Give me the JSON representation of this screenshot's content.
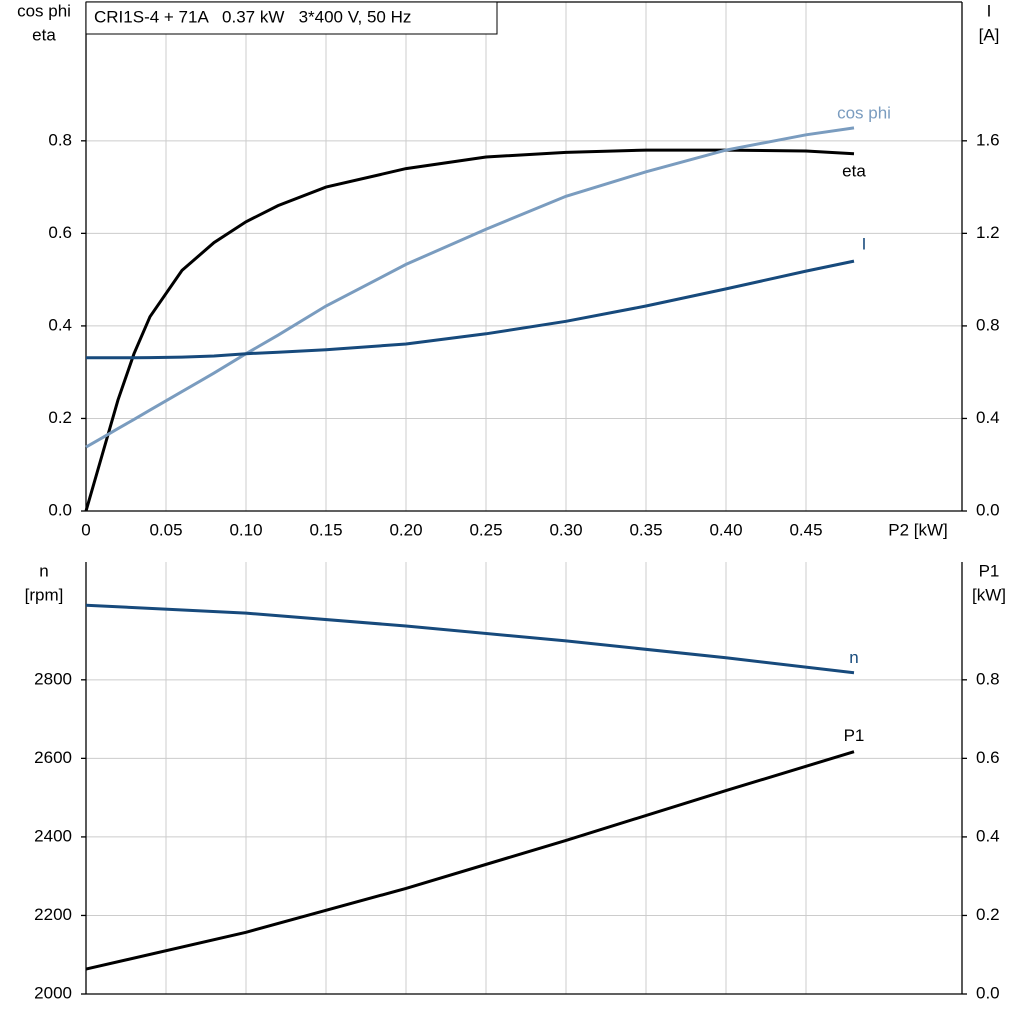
{
  "chart_data": [
    {
      "type": "line",
      "title": "CRI1S-4 + 71A   0.37 kW   3*400 V, 50 Hz",
      "ylabel": [
        "cos phi",
        "eta"
      ],
      "y2label": [
        "I",
        "[A]"
      ],
      "xlabel": "P2 [kW]",
      "x": [
        0,
        0.01,
        0.02,
        0.03,
        0.04,
        0.06,
        0.08,
        0.1,
        0.12,
        0.15,
        0.2,
        0.25,
        0.3,
        0.35,
        0.4,
        0.45,
        0.48
      ],
      "series": [
        {
          "name": "eta",
          "color": "#000000",
          "values": [
            0,
            0.12,
            0.24,
            0.34,
            0.42,
            0.52,
            0.58,
            0.625,
            0.66,
            0.7,
            0.74,
            0.765,
            0.775,
            0.78,
            0.78,
            0.778,
            0.772
          ]
        },
        {
          "name": "cos phi",
          "color": "#7a9cbf",
          "values": [
            0.138,
            0.158,
            0.178,
            0.198,
            0.218,
            0.258,
            0.298,
            0.34,
            0.38,
            0.443,
            0.533,
            0.609,
            0.68,
            0.733,
            0.78,
            0.813,
            0.828
          ]
        },
        {
          "name": "I",
          "color": "#174a7c",
          "axis": "y2",
          "values": [
            0.662,
            0.662,
            0.662,
            0.662,
            0.663,
            0.665,
            0.67,
            0.68,
            0.686,
            0.697,
            0.722,
            0.766,
            0.82,
            0.886,
            0.96,
            1.037,
            1.08
          ]
        }
      ],
      "xlim": [
        0,
        0.5475
      ],
      "xticks": [
        0,
        0.05,
        {
          "value": 0.1,
          "label": "0.10"
        },
        0.15,
        {
          "value": 0.2,
          "label": "0.20"
        },
        0.25,
        {
          "value": 0.3,
          "label": "0.30"
        },
        0.35,
        {
          "value": 0.4,
          "label": "0.40"
        },
        0.45
      ],
      "ylim": [
        0,
        1.1
      ],
      "yticks": [
        {
          "value": 0,
          "label": "0.0"
        },
        0.2,
        0.4,
        0.6,
        0.8
      ],
      "y2lim": [
        0,
        2.2
      ],
      "y2ticks": [
        {
          "value": 0,
          "label": "0.0"
        },
        0.4,
        0.8,
        1.2,
        1.6
      ],
      "grid": true
    },
    {
      "type": "line",
      "ylabel": [
        "n",
        "[rpm]"
      ],
      "y2label": [
        "P1",
        "[kW]"
      ],
      "x": [
        0,
        0.1,
        0.2,
        0.3,
        0.4,
        0.48
      ],
      "series": [
        {
          "name": "n",
          "color": "#174a7c",
          "values": [
            2990,
            2970,
            2937,
            2899,
            2856,
            2818
          ]
        },
        {
          "name": "P1",
          "color": "#000000",
          "axis": "y2",
          "values": [
            0.0635,
            0.157,
            0.269,
            0.391,
            0.518,
            0.617
          ]
        }
      ],
      "xlim": [
        0,
        0.5475
      ],
      "xticks": [
        0,
        0.05,
        0.1,
        0.15,
        0.2,
        0.25,
        0.3,
        0.35,
        0.4,
        0.45
      ],
      "ylim": [
        2000,
        3100
      ],
      "yticks": [
        2000,
        2200,
        2400,
        2600,
        2800
      ],
      "y2lim": [
        0,
        1.1
      ],
      "y2ticks": [
        {
          "value": 0,
          "label": "0.0"
        },
        0.2,
        0.4,
        0.6,
        0.8
      ],
      "grid": true
    }
  ]
}
